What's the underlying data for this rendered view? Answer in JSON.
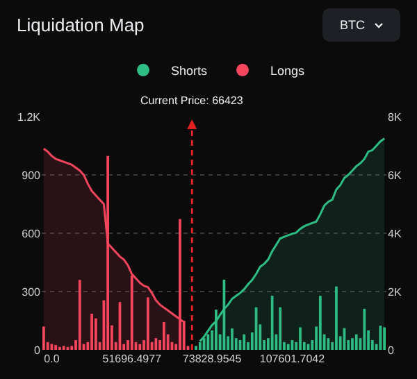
{
  "chart_data": {
    "type": "bar",
    "title": "Liquidation Map",
    "annotations": [
      "BTC",
      "Current Price: 66423"
    ],
    "categories": [
      null,
      null,
      "0.0",
      null,
      null,
      null,
      null,
      null,
      null,
      null,
      null,
      null,
      null,
      null,
      null,
      null,
      null,
      null,
      null,
      null,
      null,
      null,
      "51696.4977",
      null,
      null,
      null,
      null,
      null,
      null,
      null,
      null,
      null,
      null,
      null,
      null,
      null,
      null,
      null,
      null,
      null,
      null,
      null,
      "73828.9545",
      null,
      null,
      null,
      null,
      null,
      null,
      null,
      null,
      null,
      null,
      null,
      null,
      null,
      null,
      null,
      null,
      null,
      null,
      null,
      "107601.7042",
      null,
      null,
      null,
      null,
      null,
      null,
      null,
      null,
      null,
      null,
      null,
      null,
      null,
      null,
      null,
      null,
      null,
      null,
      null,
      null,
      null,
      null,
      null
    ],
    "series": [
      {
        "name": "Shorts",
        "color": "#2ebd85",
        "values": [
          null,
          null,
          null,
          null,
          null,
          null,
          null,
          null,
          null,
          null,
          null,
          null,
          null,
          null,
          null,
          null,
          null,
          null,
          null,
          null,
          null,
          null,
          null,
          null,
          null,
          null,
          null,
          null,
          null,
          null,
          null,
          null,
          null,
          null,
          null,
          null,
          null,
          null,
          20,
          40,
          60,
          80,
          100,
          207,
          80,
          361,
          70,
          110,
          60,
          50,
          80,
          40,
          90,
          219,
          131,
          50,
          60,
          278,
          80,
          219,
          40,
          30,
          50,
          40,
          116,
          40,
          30,
          50,
          120,
          278,
          80,
          60,
          40,
          326,
          70,
          112,
          50,
          60,
          80,
          60,
          211,
          100,
          50,
          30,
          124,
          116
        ]
      },
      {
        "name": "Longs",
        "color": "#f6465d",
        "values": [
          120,
          40,
          30,
          25,
          15,
          20,
          15,
          20,
          50,
          360,
          30,
          40,
          186,
          162,
          40,
          255,
          997,
          126,
          40,
          246,
          30,
          50,
          382,
          40,
          30,
          50,
          270,
          40,
          60,
          50,
          143,
          80,
          40,
          30,
          673,
          150,
          20,
          null,
          null,
          null,
          null,
          null,
          null,
          null,
          null,
          null,
          null,
          null,
          null,
          null,
          null,
          null,
          null,
          null,
          null,
          null,
          null,
          null,
          null,
          null,
          null,
          null,
          null,
          null,
          null,
          null,
          null,
          null,
          null,
          null,
          null,
          null,
          null,
          null,
          null,
          null,
          null,
          null,
          null,
          null,
          null,
          null,
          null,
          null,
          null,
          null
        ]
      },
      {
        "type": "area",
        "axis": "y2",
        "color": "#2ebd85",
        "values": [
          null,
          null,
          null,
          null,
          null,
          null,
          null,
          null,
          null,
          null,
          null,
          null,
          null,
          null,
          null,
          null,
          null,
          null,
          null,
          null,
          null,
          null,
          null,
          null,
          null,
          null,
          null,
          null,
          null,
          null,
          null,
          null,
          null,
          null,
          null,
          null,
          null,
          null,
          null,
          300,
          450,
          650,
          850,
          980,
          1200,
          1400,
          1550,
          1750,
          1850,
          1950,
          2080,
          2250,
          2400,
          2600,
          2850,
          2950,
          3100,
          3380,
          3600,
          3820,
          3880,
          3930,
          3980,
          4020,
          4150,
          4240,
          4300,
          4350,
          4400,
          4650,
          4950,
          5080,
          5150,
          5500,
          5650,
          5900,
          6000,
          6150,
          6300,
          6400,
          6550,
          6800,
          6850,
          7000,
          7150,
          7250
        ]
      },
      {
        "type": "area",
        "axis": "y2",
        "color": "#f6465d",
        "values": [
          6900,
          6800,
          6650,
          6550,
          6500,
          6450,
          6400,
          6350,
          6250,
          6150,
          6000,
          5700,
          5450,
          5300,
          5150,
          5000,
          3650,
          3500,
          3350,
          3200,
          3100,
          2900,
          2600,
          2450,
          2300,
          2200,
          2150,
          1950,
          1700,
          1550,
          1450,
          1350,
          1250,
          1150,
          1050,
          950,
          null,
          null,
          null,
          null,
          null,
          null,
          null,
          null,
          null,
          null,
          null,
          null,
          null,
          null,
          null,
          null,
          null,
          null,
          null,
          null,
          null,
          null,
          null,
          null,
          null,
          null,
          null,
          null,
          null,
          null,
          null,
          null,
          null,
          null,
          null,
          null,
          null,
          null,
          null,
          null,
          null,
          null,
          null,
          null,
          null,
          null,
          null,
          null,
          null,
          null
        ]
      }
    ],
    "ylim": [
      0,
      1200
    ],
    "yticks": [
      0,
      300,
      600,
      900,
      {
        "value": 1200,
        "label": "1.2K"
      }
    ],
    "y2lim": [
      0,
      8000
    ],
    "y2ticks": [
      0,
      {
        "value": 2000,
        "label": "2K"
      },
      {
        "value": 4000,
        "label": "4K"
      },
      {
        "value": 6000,
        "label": "6K"
      },
      {
        "value": 8000,
        "label": "8K"
      }
    ],
    "grid": "y",
    "legend": "top"
  }
}
